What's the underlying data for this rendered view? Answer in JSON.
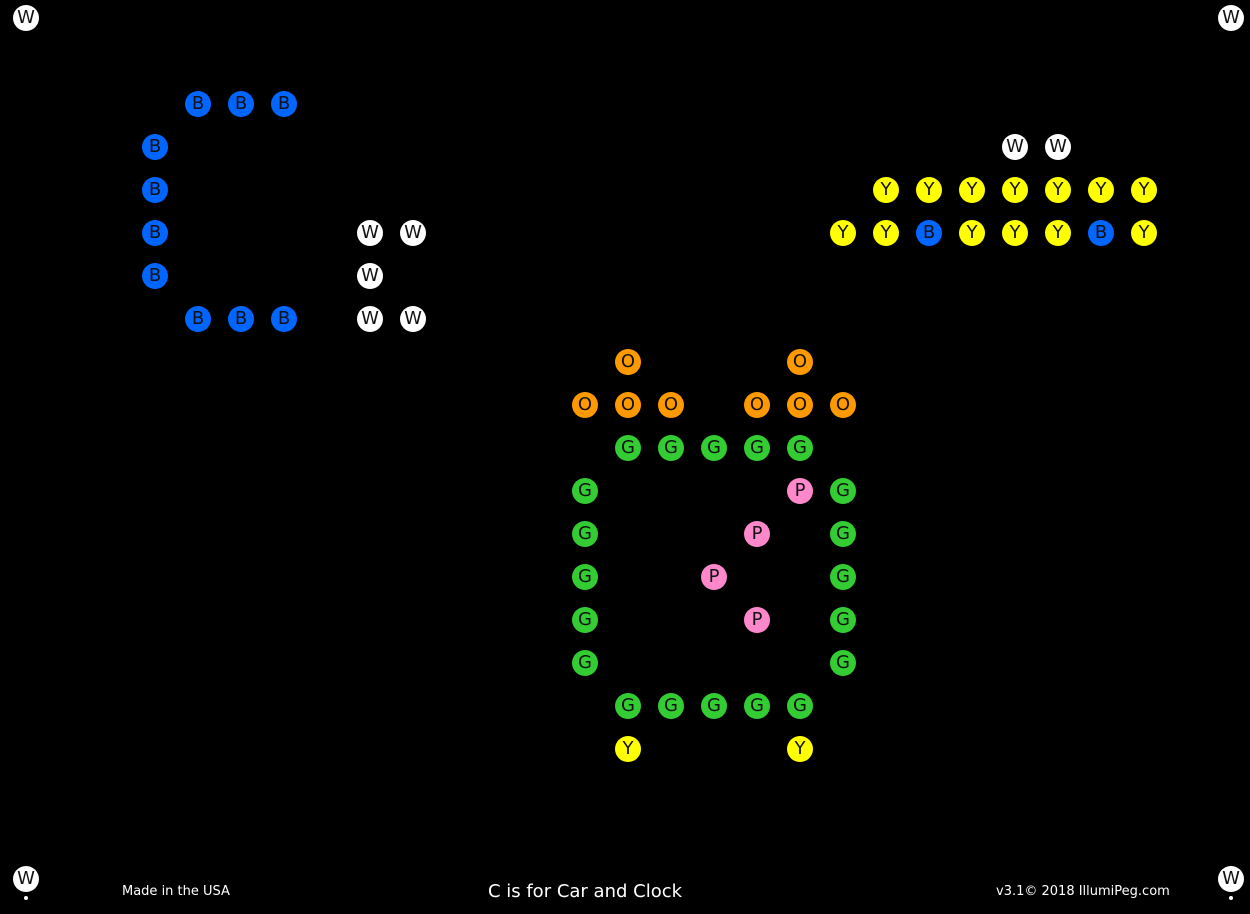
{
  "board": {
    "title": "C is for Car and Clock",
    "made_in": "Made in the USA",
    "copyright": "v3.1© 2018 IllumiPeg.com",
    "corner_peg": "W",
    "colors": {
      "B": "#0066ff",
      "W": "#ffffff",
      "Y": "#ffff00",
      "O": "#ff9900",
      "G": "#33cc33",
      "P": "#ff88cc"
    },
    "pattern": [
      ".BBB....................",
      "B...................WW..",
      "B................YYYYYYY",
      "B....WW.........YYBYYYBY",
      "B....W..................",
      ".BBB.WW.................",
      "...........O...O........",
      "..........OOO.OOO.......",
      "...........GGGGG........",
      "..........G....PG.......",
      "..........G...P.G.......",
      "..........G..P..G.......",
      "..........G...P.G.......",
      "..........G.....G.......",
      "...........GGGGG........",
      "...........Y...Y........"
    ]
  }
}
